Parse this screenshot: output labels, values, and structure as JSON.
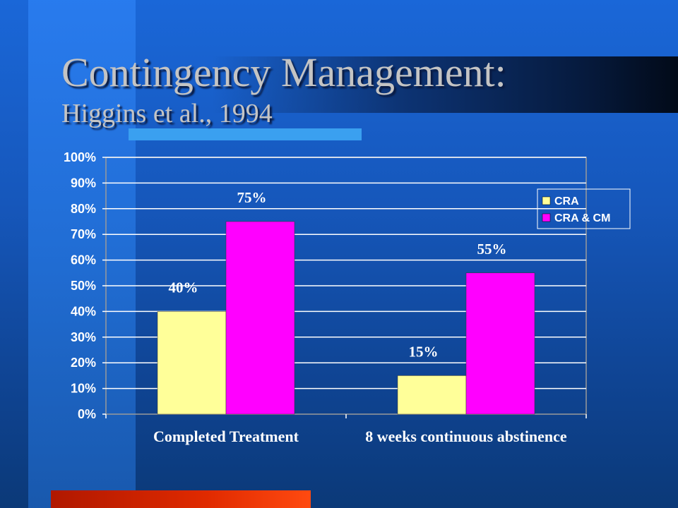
{
  "slide": {
    "title": "Contingency Management:",
    "subtitle": "Higgins et al., 1994"
  },
  "colors": {
    "background": "#1657bb",
    "title": "#c4c4c4",
    "accent_bar": "#3aa0f0",
    "bottom_bar": "#e02a00"
  },
  "chart_data": {
    "type": "bar",
    "categories": [
      "Completed Treatment",
      "8 weeks continuous abstinence"
    ],
    "series": [
      {
        "name": "CRA",
        "values": [
          40,
          15
        ],
        "labels": [
          "40%",
          "15%"
        ],
        "color": "#ffff99"
      },
      {
        "name": "CRA & CM",
        "values": [
          75,
          55
        ],
        "labels": [
          "75%",
          "55%"
        ],
        "color": "#ff00ff"
      }
    ],
    "yticks": [
      "0%",
      "10%",
      "20%",
      "30%",
      "40%",
      "50%",
      "60%",
      "70%",
      "80%",
      "90%",
      "100%"
    ],
    "ylim": [
      0,
      100
    ],
    "grid": true,
    "legend": "top-right"
  }
}
